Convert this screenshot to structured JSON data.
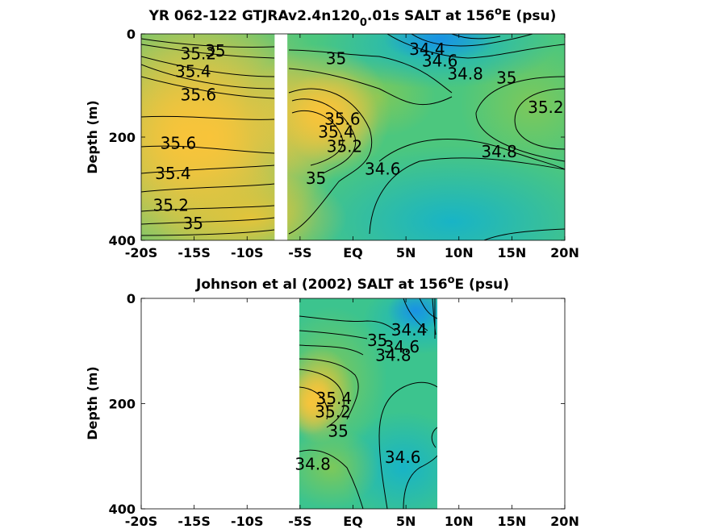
{
  "colors": {
    "salt_high": "#f6c23a",
    "salt_mid_high": "#d2cc3a",
    "salt_mid": "#7cc85a",
    "salt_mid_low": "#3cc08c",
    "salt_low": "#18b6c4",
    "salt_lowest": "#1e8fe0",
    "mask": "#ffffff",
    "contour": "#000000"
  },
  "chart_data": [
    {
      "type": "heatmap",
      "title_main": "YR 062-122 GTJRAv2.4n120",
      "title_sub": "0",
      "title_tail": ".01s SALT at 156",
      "title_sup": "o",
      "title_end": "E (psu)",
      "ylabel": "Depth (m)",
      "xlim": [
        -20,
        20
      ],
      "ylim": [
        0,
        400
      ],
      "y_reversed": true,
      "xticks": [
        -20,
        -15,
        -10,
        -5,
        0,
        5,
        10,
        15,
        20
      ],
      "xtick_labels": [
        "-20S",
        "-15S",
        "-10S",
        "-5S",
        "EQ",
        "5N",
        "10N",
        "15N",
        "20N"
      ],
      "yticks": [
        0,
        200,
        400
      ],
      "ytick_labels": [
        "0",
        "200",
        "400"
      ],
      "data_extent": [
        -20,
        20
      ],
      "mask_gaps": [
        [
          -7.4,
          -6.2
        ]
      ],
      "contour_labels": [
        {
          "text": "35.2",
          "x": -14.6,
          "y": 38
        },
        {
          "text": "35",
          "x": -13.0,
          "y": 33
        },
        {
          "text": "35.4",
          "x": -15.1,
          "y": 73
        },
        {
          "text": "35.6",
          "x": -14.6,
          "y": 118
        },
        {
          "text": "35.6",
          "x": -16.5,
          "y": 212
        },
        {
          "text": "35.4",
          "x": -17.0,
          "y": 270
        },
        {
          "text": "35.2",
          "x": -17.2,
          "y": 332
        },
        {
          "text": "35",
          "x": -15.1,
          "y": 367
        },
        {
          "text": "35",
          "x": -1.6,
          "y": 48
        },
        {
          "text": "34.4",
          "x": 7.0,
          "y": 30
        },
        {
          "text": "34.6",
          "x": 8.2,
          "y": 52
        },
        {
          "text": "34.8",
          "x": 10.6,
          "y": 77
        },
        {
          "text": "35",
          "x": 14.5,
          "y": 85
        },
        {
          "text": "35.2",
          "x": 18.2,
          "y": 142
        },
        {
          "text": "35.6",
          "x": -1.0,
          "y": 165
        },
        {
          "text": "35.4",
          "x": -1.6,
          "y": 190
        },
        {
          "text": "35.2",
          "x": -0.8,
          "y": 218
        },
        {
          "text": "35",
          "x": -3.5,
          "y": 280
        },
        {
          "text": "34.6",
          "x": 2.8,
          "y": 262
        },
        {
          "text": "34.8",
          "x": 13.8,
          "y": 228
        }
      ]
    },
    {
      "type": "heatmap",
      "title_main": "Johnson et al (2002) SALT at 156",
      "title_sup": "o",
      "title_end": "E (psu)",
      "ylabel": "Depth (m)",
      "xlim": [
        -20,
        20
      ],
      "ylim": [
        0,
        400
      ],
      "y_reversed": true,
      "xticks": [
        -20,
        -15,
        -10,
        -5,
        0,
        5,
        10,
        15,
        20
      ],
      "xtick_labels": [
        "-20S",
        "-15S",
        "-10S",
        "-5S",
        "EQ",
        "5N",
        "10N",
        "15N",
        "20N"
      ],
      "yticks": [
        0,
        200,
        400
      ],
      "ytick_labels": [
        "0",
        "200",
        "400"
      ],
      "data_extent": [
        -5,
        8
      ],
      "contour_labels": [
        {
          "text": "34.4",
          "x": 5.3,
          "y": 60
        },
        {
          "text": "34.6",
          "x": 4.6,
          "y": 92
        },
        {
          "text": "34.8",
          "x": 3.8,
          "y": 108
        },
        {
          "text": "35",
          "x": 2.3,
          "y": 80
        },
        {
          "text": "35.4",
          "x": -1.8,
          "y": 190
        },
        {
          "text": "35.2",
          "x": -1.9,
          "y": 215
        },
        {
          "text": "35",
          "x": -1.4,
          "y": 252
        },
        {
          "text": "34.6",
          "x": 4.7,
          "y": 302
        },
        {
          "text": "34.8",
          "x": -3.8,
          "y": 315
        }
      ]
    }
  ]
}
